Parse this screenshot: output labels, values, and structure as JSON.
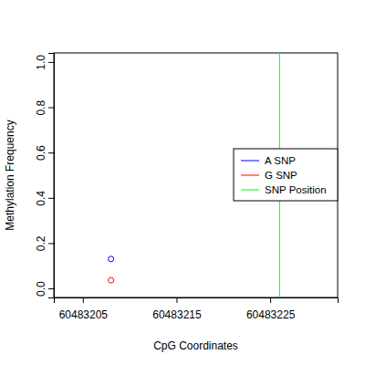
{
  "chart_data": {
    "type": "scatter",
    "x_label": "CpG Coordinates",
    "y_label": "Methylation Frequency",
    "xlim": [
      60483201.9,
      60483232.2
    ],
    "xticks": [
      60483205,
      60483215,
      60483225
    ],
    "ylim": [
      -0.04,
      1.04
    ],
    "yticks": [
      {
        "value": 0,
        "label": "0.0"
      },
      {
        "value": 0.2,
        "label": "0.2"
      },
      {
        "value": 0.4,
        "label": "0.4"
      },
      {
        "value": 0.6,
        "label": "0.6"
      },
      {
        "value": 0.8,
        "label": "0.8"
      },
      {
        "value": 1,
        "label": "1.0"
      }
    ],
    "legend": "right",
    "series": [
      {
        "name": "A SNP",
        "color": "#0000ff",
        "marker": "circle",
        "x": [
          60483208
        ],
        "values": [
          0.13
        ]
      },
      {
        "name": "G SNP",
        "color": "#ff0000",
        "marker": "circle",
        "x": [
          60483208
        ],
        "values": [
          0.036
        ]
      },
      {
        "name": "SNP Position",
        "type": "vline",
        "color": "#00ff00",
        "x": [
          60483226
        ]
      }
    ]
  }
}
